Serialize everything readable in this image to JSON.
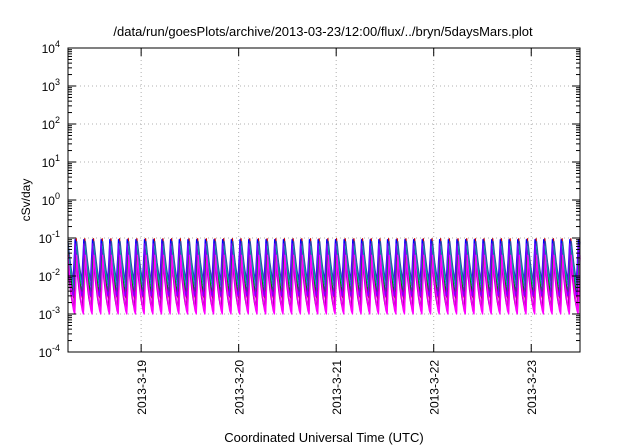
{
  "chart_data": {
    "type": "line",
    "title": "/data/run/goesPlots/archive/2013-03-23/12:00/flux/../bryn/5daysMars.plot",
    "xlabel": "Coordinated Universal Time (UTC)",
    "ylabel": "cSv/day",
    "y_scale": "log",
    "ylim": [
      0.0001,
      10000
    ],
    "y_ticks": [
      {
        "value": 0.0001,
        "base": "10",
        "exp": "-4"
      },
      {
        "value": 0.001,
        "base": "10",
        "exp": "-3"
      },
      {
        "value": 0.01,
        "base": "10",
        "exp": "-2"
      },
      {
        "value": 0.1,
        "base": "10",
        "exp": "-1"
      },
      {
        "value": 1,
        "base": "10",
        "exp": "0"
      },
      {
        "value": 10,
        "base": "10",
        "exp": "1"
      },
      {
        "value": 100,
        "base": "10",
        "exp": "2"
      },
      {
        "value": 1000,
        "base": "10",
        "exp": "3"
      },
      {
        "value": 10000,
        "base": "10",
        "exp": "4"
      }
    ],
    "xlim": [
      "2013-03-18T06:00",
      "2013-03-23T12:00"
    ],
    "x_ticks": [
      {
        "value": "2013-03-19T00:00",
        "label": "2013-3-19"
      },
      {
        "value": "2013-03-20T00:00",
        "label": "2013-3-20"
      },
      {
        "value": "2013-03-21T00:00",
        "label": "2013-3-21"
      },
      {
        "value": "2013-03-22T00:00",
        "label": "2013-3-22"
      },
      {
        "value": "2013-03-23T00:00",
        "label": "2013-3-23"
      }
    ],
    "grid": true,
    "legend": "none",
    "pattern": {
      "description": "periodic sawtooth (orbit cycle)",
      "cycles_shown": 59,
      "peak_range": [
        0.03,
        0.1
      ],
      "trough_range": [
        0.001,
        0.01
      ]
    },
    "series": [
      {
        "color": "#ff00ff",
        "peak": 0.03,
        "trough": 0.001
      },
      {
        "color": "#cc0000",
        "peak": 0.095,
        "trough": 0.0025
      },
      {
        "color": "#b000b0",
        "peak": 0.04,
        "trough": 0.0015
      },
      {
        "color": "#0000ff",
        "peak": 0.09,
        "trough": 0.008
      },
      {
        "color": "#2f4fa0",
        "peak": 0.08,
        "trough": 0.006
      },
      {
        "color": "#00b0b0",
        "peak": 0.06,
        "trough": 0.005
      },
      {
        "color": "#008000",
        "peak": 0.05,
        "trough": 0.004
      },
      {
        "color": "#7f00ff",
        "peak": 0.07,
        "trough": 0.003
      },
      {
        "color": "#ff00ff",
        "peak": 0.035,
        "trough": 0.0012
      }
    ]
  }
}
